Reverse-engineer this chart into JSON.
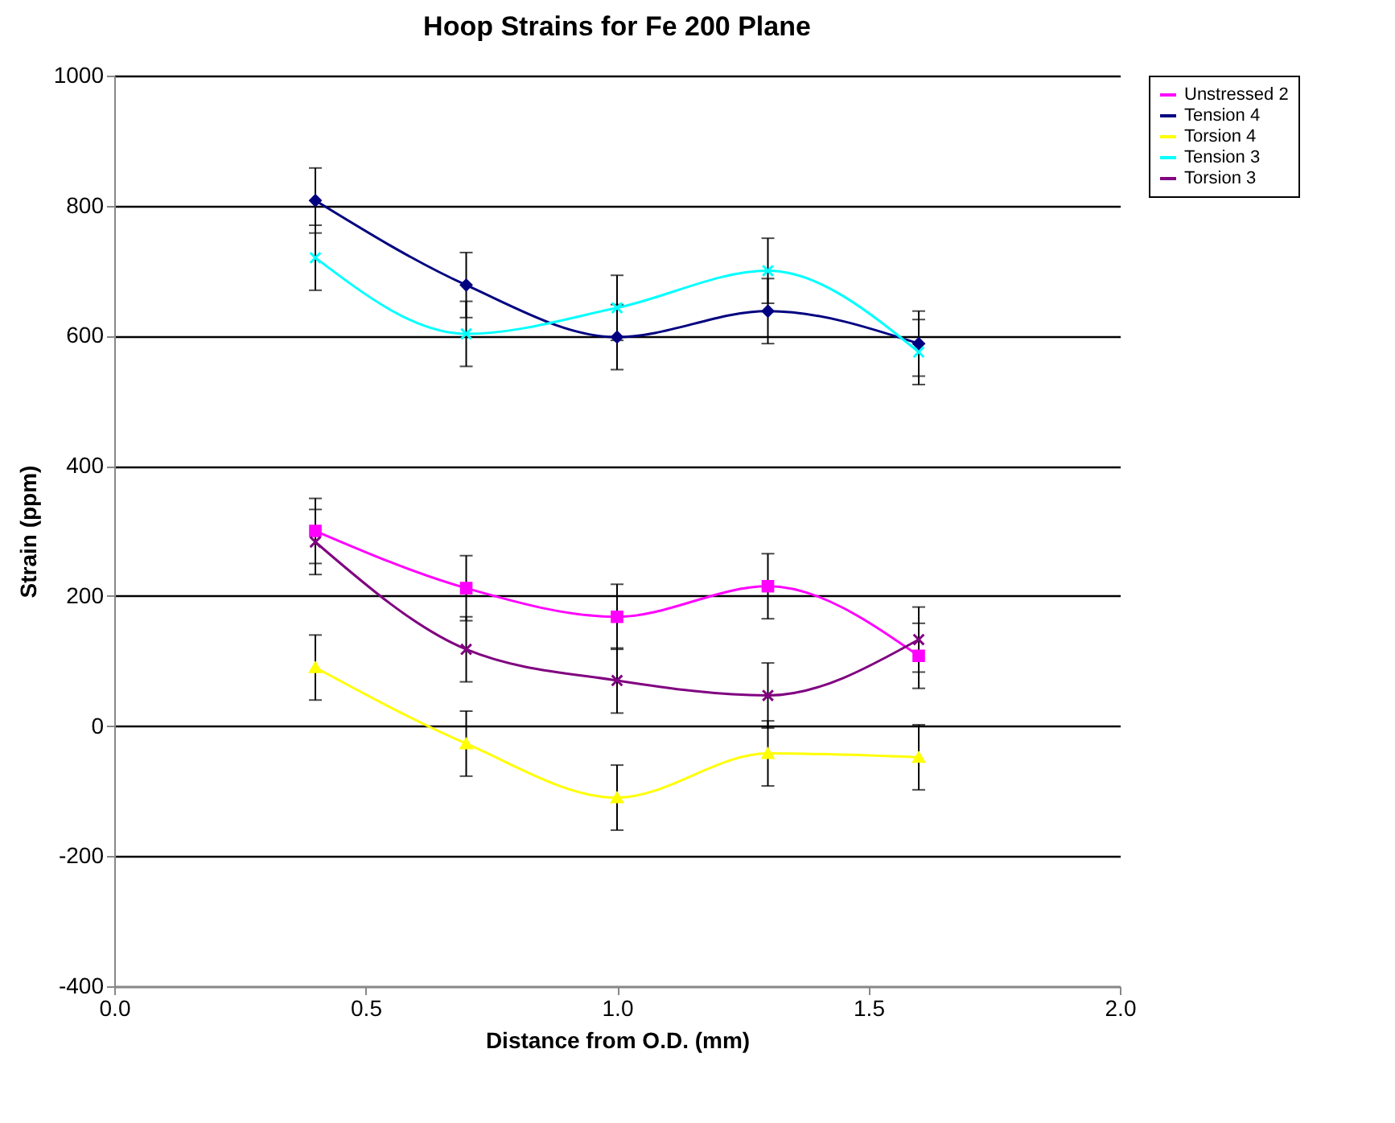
{
  "chart_data": {
    "type": "line",
    "title": "Hoop Strains for Fe 200 Plane",
    "xlabel": "Distance from O.D. (mm)",
    "ylabel": "Strain (ppm)",
    "x": [
      0.4,
      0.7,
      1.0,
      1.3,
      1.6
    ],
    "series": [
      {
        "name": "Unstressed 2",
        "color": "#ff00ff",
        "marker": "square",
        "values": [
          300,
          212,
          168,
          215,
          108
        ],
        "errors": [
          50,
          50,
          50,
          50,
          50
        ]
      },
      {
        "name": "Tension 4",
        "color": "#000080",
        "marker": "diamond",
        "values": [
          808,
          678,
          598,
          638,
          588
        ],
        "errors": [
          50,
          50,
          50,
          50,
          50
        ]
      },
      {
        "name": "Torsion 4",
        "color": "#ffff00",
        "marker": "triangle",
        "values": [
          90,
          -27,
          -110,
          -42,
          -48
        ],
        "errors": [
          50,
          50,
          50,
          50,
          50
        ]
      },
      {
        "name": "Tension 3",
        "color": "#00ffff",
        "marker": "cross",
        "values": [
          720,
          603,
          643,
          700,
          575
        ],
        "errors": [
          50,
          50,
          50,
          50,
          50
        ]
      },
      {
        "name": "Torsion 3",
        "color": "#800080",
        "marker": "cross",
        "values": [
          283,
          118,
          70,
          47,
          133
        ],
        "errors": [
          50,
          50,
          50,
          50,
          50
        ]
      }
    ],
    "xlim": [
      0,
      2
    ],
    "xticks": [
      {
        "value": 0,
        "label": "0.0"
      },
      {
        "value": 0.5,
        "label": "0.5"
      },
      {
        "value": 1,
        "label": "1.0"
      },
      {
        "value": 1.5,
        "label": "1.5"
      },
      {
        "value": 2,
        "label": "2.0"
      }
    ],
    "ylim": [
      -400,
      1000
    ],
    "yticks": [
      -400,
      -200,
      0,
      200,
      400,
      600,
      800,
      1000
    ],
    "grid": "y",
    "legend": "right",
    "line_style": "solid"
  }
}
